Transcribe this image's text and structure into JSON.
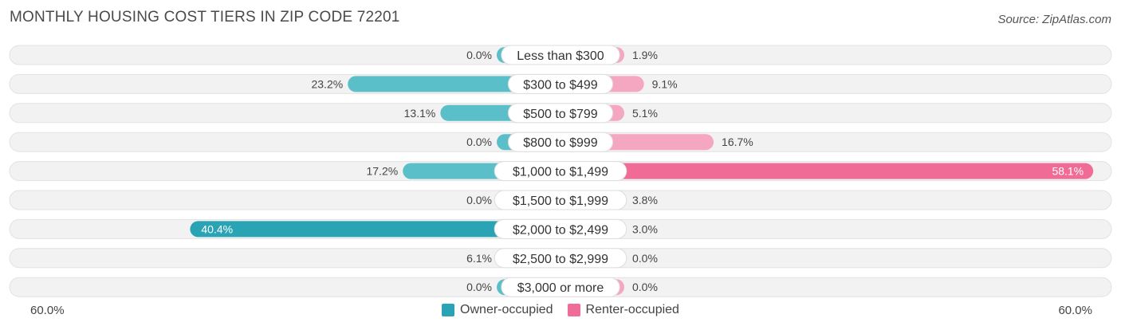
{
  "title": "MONTHLY HOUSING COST TIERS IN ZIP CODE 72201",
  "source": "Source: ZipAtlas.com",
  "axis": {
    "left_label": "60.0%",
    "right_label": "60.0%"
  },
  "legend": {
    "owner_label": "Owner-occupied",
    "renter_label": "Renter-occupied"
  },
  "colors": {
    "owner": "#5bbfca",
    "owner_strong": "#2aa4b5",
    "renter": "#f5a6c0",
    "renter_strong": "#f06b96",
    "track": "#f2f2f2"
  },
  "chart_data": {
    "type": "bar",
    "orientation": "diverging-horizontal",
    "x_max": 60.0,
    "categories": [
      "Less than $300",
      "$300 to $499",
      "$500 to $799",
      "$800 to $999",
      "$1,000 to $1,499",
      "$1,500 to $1,999",
      "$2,000 to $2,499",
      "$2,500 to $2,999",
      "$3,000 or more"
    ],
    "series": [
      {
        "name": "Owner-occupied",
        "values": [
          0.0,
          23.2,
          13.1,
          0.0,
          17.2,
          0.0,
          40.4,
          6.1,
          0.0
        ],
        "labels": [
          "0.0%",
          "23.2%",
          "13.1%",
          "0.0%",
          "17.2%",
          "0.0%",
          "40.4%",
          "6.1%",
          "0.0%"
        ]
      },
      {
        "name": "Renter-occupied",
        "values": [
          1.9,
          9.1,
          5.1,
          16.7,
          58.1,
          3.8,
          3.0,
          0.0,
          0.0
        ],
        "labels": [
          "1.9%",
          "9.1%",
          "5.1%",
          "16.7%",
          "58.1%",
          "3.8%",
          "3.0%",
          "0.0%",
          "0.0%"
        ]
      }
    ]
  }
}
